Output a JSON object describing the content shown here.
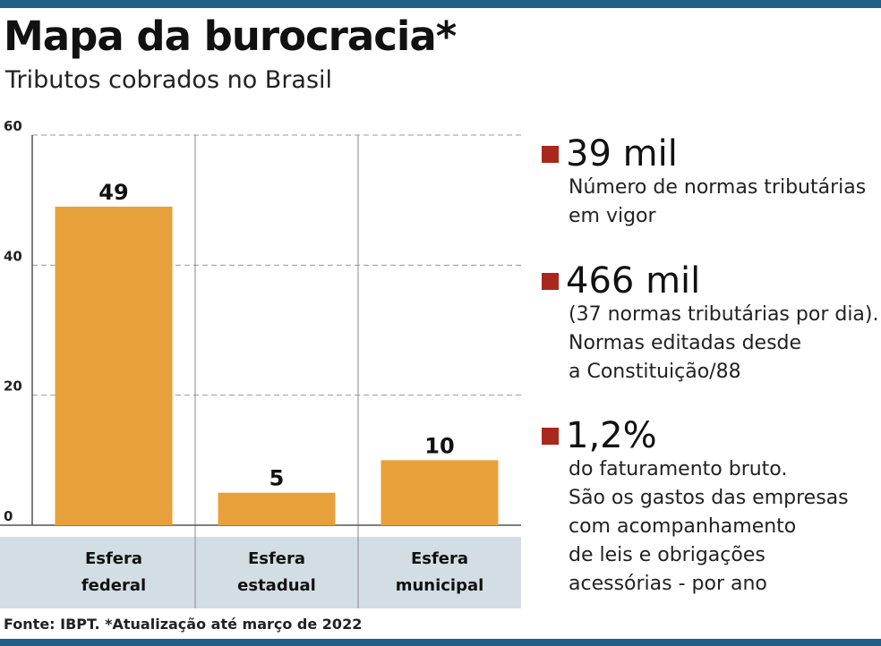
{
  "header": {
    "title": "Mapa da burocracia*",
    "subtitle": "Tributos cobrados no Brasil"
  },
  "chart_data": {
    "type": "bar",
    "categories": [
      [
        "Esfera",
        "federal"
      ],
      [
        "Esfera",
        "estadual"
      ],
      [
        "Esfera",
        "municipal"
      ]
    ],
    "values": [
      49,
      5,
      10
    ],
    "value_labels": [
      "49",
      "5",
      "10"
    ],
    "yticks": [
      "0",
      "20",
      "40",
      "60"
    ],
    "ylim": [
      0,
      60
    ],
    "grid": true,
    "bar_color": "#e8a13a",
    "category_band_color": "#d3dde4"
  },
  "stats": [
    {
      "value": "39 mil",
      "description": "Número de normas tributárias\nem vigor"
    },
    {
      "value": "466 mil",
      "description": "(37 normas tributárias por dia).\nNormas editadas desde\na Constituição/88"
    },
    {
      "value": "1,2%",
      "description": "do faturamento bruto.\nSão os gastos das empresas\ncom acompanhamento\nde leis e obrigações\nacessórias - por ano"
    }
  ],
  "footer": "Fonte: IBPT. *Atualização até março de 2022",
  "colors": {
    "accent_bar": "#1f5f88",
    "stat_marker": "#a8281b"
  }
}
